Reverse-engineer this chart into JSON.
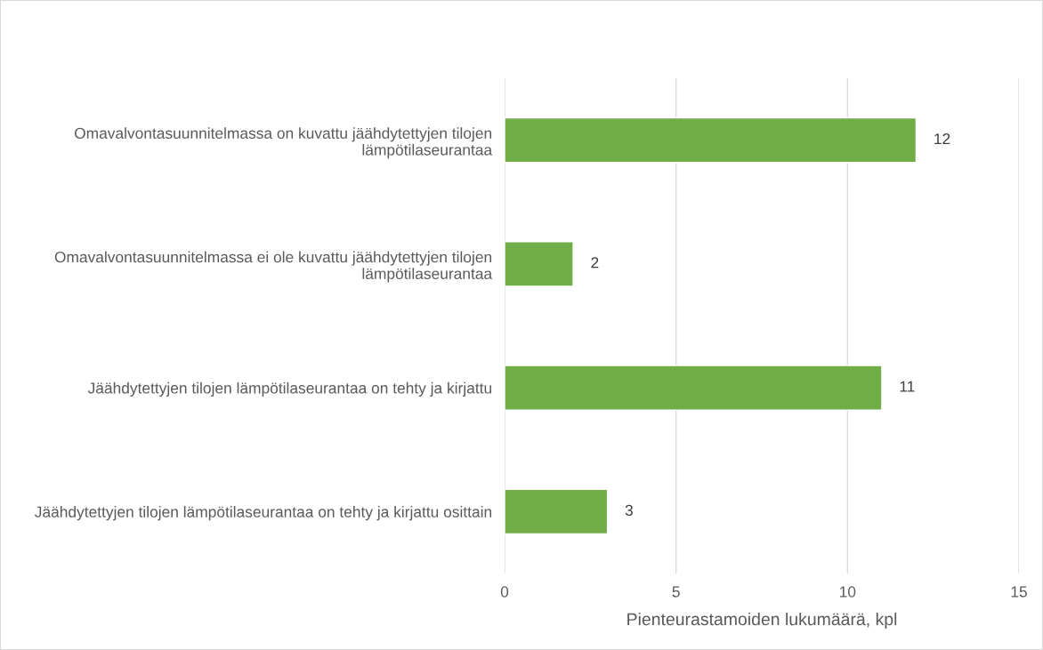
{
  "chart_data": {
    "type": "bar",
    "orientation": "horizontal",
    "categories": [
      "Omavalvontasuunnitelmassa on kuvattu jäähdytettyjen tilojen lämpötilaseurantaa",
      "Omavalvontasuunnitelmassa ei ole kuvattu jäähdytettyjen tilojen lämpötilaseurantaa",
      "Jäähdytettyjen tilojen lämpötilaseurantaa on tehty ja kirjattu",
      "Jäähdytettyjen tilojen lämpötilaseurantaa on tehty ja kirjattu osittain"
    ],
    "values": [
      12,
      2,
      11,
      3
    ],
    "color": "#70ad47",
    "xlabel": "Pienteurastamoiden lukumäärä, kpl",
    "xlim": [
      0,
      15
    ],
    "xticks": [
      0,
      5,
      10,
      15
    ],
    "grid": "x",
    "data_labels": true,
    "legend": false
  }
}
